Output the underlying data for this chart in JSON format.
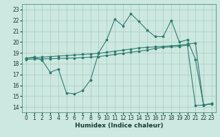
{
  "xlabel": "Humidex (Indice chaleur)",
  "bg_color": "#cce8e0",
  "grid_color": "#aaccbb",
  "line_color": "#2e7b6e",
  "xlim": [
    -0.5,
    23.5
  ],
  "ylim": [
    13.5,
    23.5
  ],
  "xticks": [
    0,
    1,
    2,
    3,
    4,
    5,
    6,
    7,
    8,
    9,
    10,
    11,
    12,
    13,
    14,
    15,
    16,
    17,
    18,
    19,
    20,
    21,
    22,
    23
  ],
  "yticks": [
    14,
    15,
    16,
    17,
    18,
    19,
    20,
    21,
    22,
    23
  ],
  "series1_x": [
    0,
    1,
    2,
    3,
    4,
    5,
    6,
    7,
    8,
    9,
    10,
    11,
    12,
    13,
    14,
    15,
    16,
    17,
    18,
    19,
    20,
    21,
    22,
    23
  ],
  "series1_y": [
    18.5,
    18.6,
    18.3,
    17.2,
    17.5,
    15.3,
    15.2,
    15.5,
    16.5,
    19.0,
    20.2,
    22.1,
    21.5,
    22.6,
    21.9,
    21.1,
    20.5,
    20.5,
    22.0,
    20.0,
    20.2,
    18.4,
    14.2,
    14.3
  ],
  "series2_x": [
    0,
    1,
    2,
    3,
    4,
    5,
    6,
    7,
    8,
    9,
    10,
    11,
    12,
    13,
    14,
    15,
    16,
    17,
    18,
    19,
    20,
    21,
    22,
    23
  ],
  "series2_y": [
    18.5,
    18.55,
    18.6,
    18.65,
    18.7,
    18.75,
    18.8,
    18.85,
    18.9,
    18.95,
    19.05,
    19.15,
    19.25,
    19.35,
    19.45,
    19.5,
    19.55,
    19.6,
    19.65,
    19.7,
    19.8,
    19.9,
    14.15,
    14.3
  ],
  "series3_x": [
    0,
    1,
    2,
    3,
    4,
    5,
    6,
    7,
    8,
    9,
    10,
    11,
    12,
    13,
    14,
    15,
    16,
    17,
    18,
    19,
    20,
    21,
    22,
    23
  ],
  "series3_y": [
    18.4,
    18.42,
    18.44,
    18.46,
    18.48,
    18.5,
    18.52,
    18.55,
    18.6,
    18.65,
    18.75,
    18.85,
    18.95,
    19.05,
    19.15,
    19.25,
    19.4,
    19.5,
    19.55,
    19.6,
    19.7,
    14.12,
    14.18,
    14.28
  ]
}
